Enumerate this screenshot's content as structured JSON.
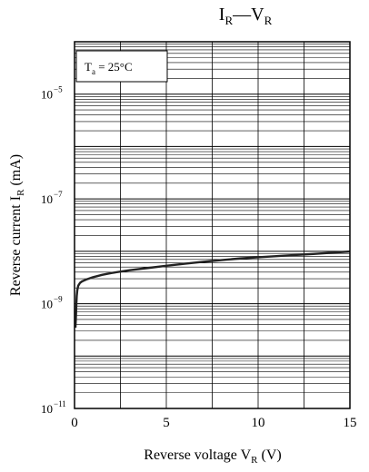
{
  "chart_data": {
    "type": "line",
    "title": {
      "main_1": "I",
      "sub_1": "R",
      "dash": "—",
      "main_2": "V",
      "sub_2": "R"
    },
    "annotation": {
      "t": "T",
      "t_sub": "a",
      "rest": " = 25°C"
    },
    "xlabel": {
      "text": "Reverse voltage  V",
      "sub": "R",
      "unit": "  (V)"
    },
    "ylabel": {
      "text": "Reverse current  I",
      "sub": "R",
      "unit": "  (mA)"
    },
    "x_ticks": [
      {
        "value": 0,
        "label": "0"
      },
      {
        "value": 5,
        "label": "5"
      },
      {
        "value": 10,
        "label": "10"
      },
      {
        "value": 15,
        "label": "15"
      }
    ],
    "y_ticks": [
      {
        "value": 1e-11,
        "base": "10",
        "exp": "−11"
      },
      {
        "value": 1e-09,
        "base": "10",
        "exp": "−9"
      },
      {
        "value": 1e-07,
        "base": "10",
        "exp": "−7"
      },
      {
        "value": 1e-05,
        "base": "10",
        "exp": "−5"
      }
    ],
    "xlim": [
      0,
      15
    ],
    "ylim": [
      1e-11,
      0.0001
    ],
    "y_scale": "log",
    "grid": true,
    "series": [
      {
        "x": [
          0.05,
          0.08,
          0.1,
          0.12,
          0.15,
          0.2,
          0.3,
          0.4,
          0.5,
          0.7,
          1.0,
          1.5,
          2.0,
          3.0,
          4.0,
          5.0,
          6.0,
          7.0,
          8.0,
          9.0,
          10.0,
          11.0,
          12.0,
          13.0,
          14.0,
          15.0
        ],
        "y": [
          3.5e-10,
          6e-10,
          1e-09,
          1.4e-09,
          1.8e-09,
          2.2e-09,
          2.5e-09,
          2.65e-09,
          2.75e-09,
          2.95e-09,
          3.2e-09,
          3.55e-09,
          3.85e-09,
          4.35e-09,
          4.8e-09,
          5.3e-09,
          5.8e-09,
          6.3e-09,
          6.8e-09,
          7.3e-09,
          7.7e-09,
          8.1e-09,
          8.5e-09,
          8.9e-09,
          9.4e-09,
          9.9e-09
        ]
      }
    ]
  }
}
